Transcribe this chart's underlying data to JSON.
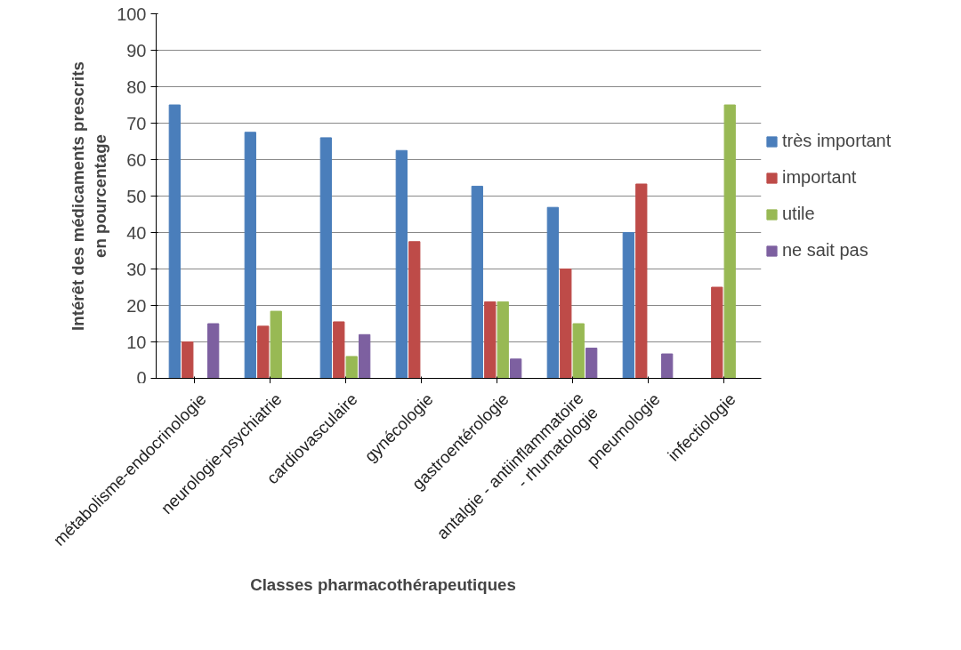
{
  "chart_data": {
    "type": "bar",
    "xlabel": "Classes pharmacothérapeutiques",
    "ylabel": "Intérêt des médicaments prescrits\nen pourcentage",
    "categories": [
      "métabolisme-endocrinologie",
      "neurologie-psychiatrie",
      "cardiovasculaire",
      "gynécologie",
      "gastroentérologie",
      "antalgie - antiinflammatoire\n- rhumatologie",
      "pneumologie",
      "infectiologie"
    ],
    "series": [
      {
        "name": "très important",
        "color": "#4a7ebb",
        "values": [
          75,
          67.5,
          66,
          62.5,
          52.7,
          46.9,
          40,
          null
        ]
      },
      {
        "name": "important",
        "color": "#be4b48",
        "values": [
          10,
          14.3,
          15.5,
          37.5,
          21,
          30,
          53.3,
          25
        ]
      },
      {
        "name": "utile",
        "color": "#98b954",
        "values": [
          null,
          18.4,
          6,
          null,
          21,
          15,
          null,
          75
        ]
      },
      {
        "name": "ne sait pas",
        "color": "#7d60a0",
        "values": [
          15,
          null,
          12,
          null,
          5.3,
          8.3,
          6.7,
          null
        ]
      }
    ],
    "ylim": [
      0,
      100
    ],
    "yticks": [
      0,
      10,
      20,
      30,
      40,
      50,
      60,
      70,
      80,
      90,
      100
    ],
    "grid": "y",
    "legend": "right"
  }
}
